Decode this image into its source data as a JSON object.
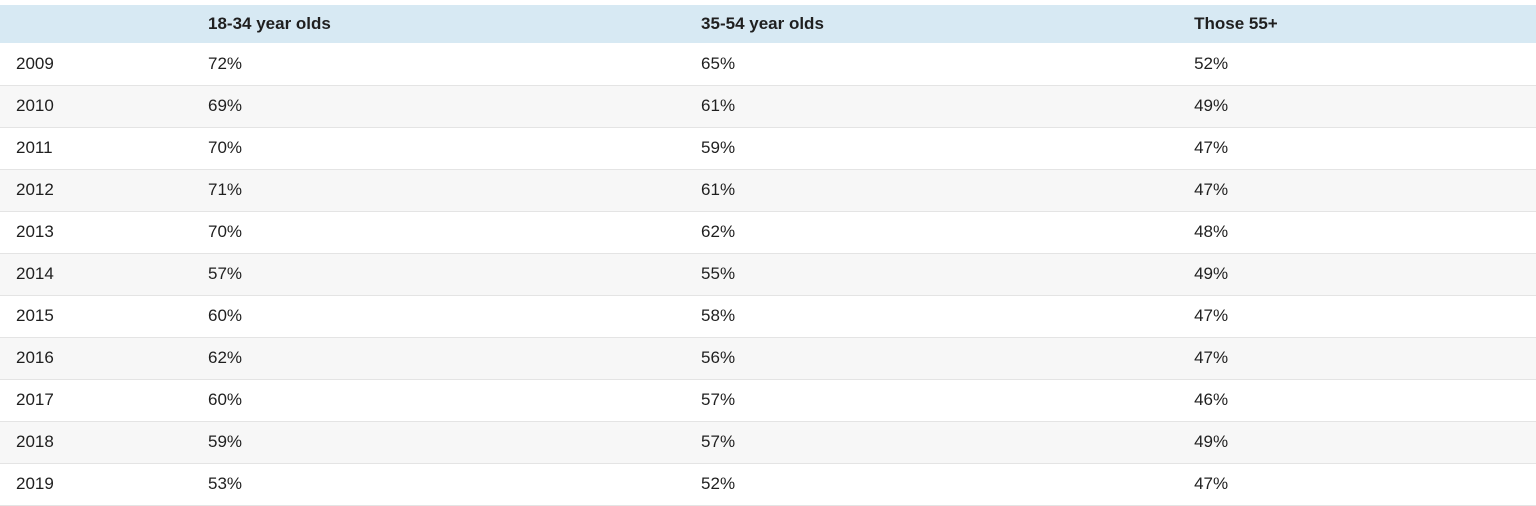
{
  "colors": {
    "header_bg": "#d7e9f3",
    "row_alt_bg": "#f7f7f7",
    "border": "#e4e4e4",
    "text": "#1f1f1f"
  },
  "chart_data": {
    "type": "table",
    "title": "",
    "columns": [
      "",
      "18-34 year olds",
      "35-54 year olds",
      "Those 55+"
    ],
    "rows": [
      {
        "year": "2009",
        "values": [
          "72%",
          "65%",
          "52%"
        ]
      },
      {
        "year": "2010",
        "values": [
          "69%",
          "61%",
          "49%"
        ]
      },
      {
        "year": "2011",
        "values": [
          "70%",
          "59%",
          "47%"
        ]
      },
      {
        "year": "2012",
        "values": [
          "71%",
          "61%",
          "47%"
        ]
      },
      {
        "year": "2013",
        "values": [
          "70%",
          "62%",
          "48%"
        ]
      },
      {
        "year": "2014",
        "values": [
          "57%",
          "55%",
          "49%"
        ]
      },
      {
        "year": "2015",
        "values": [
          "60%",
          "58%",
          "47%"
        ]
      },
      {
        "year": "2016",
        "values": [
          "62%",
          "56%",
          "47%"
        ]
      },
      {
        "year": "2017",
        "values": [
          "60%",
          "57%",
          "46%"
        ]
      },
      {
        "year": "2018",
        "values": [
          "59%",
          "57%",
          "49%"
        ]
      },
      {
        "year": "2019",
        "values": [
          "53%",
          "52%",
          "47%"
        ]
      }
    ],
    "x": [
      2009,
      2010,
      2011,
      2012,
      2013,
      2014,
      2015,
      2016,
      2017,
      2018,
      2019
    ],
    "series": [
      {
        "name": "18-34 year olds",
        "values": [
          72,
          69,
          70,
          71,
          70,
          57,
          60,
          62,
          60,
          59,
          53
        ]
      },
      {
        "name": "35-54 year olds",
        "values": [
          65,
          61,
          59,
          61,
          62,
          55,
          58,
          56,
          57,
          57,
          52
        ]
      },
      {
        "name": "Those 55+",
        "values": [
          52,
          49,
          47,
          47,
          48,
          49,
          47,
          47,
          46,
          49,
          47
        ]
      }
    ],
    "value_unit": "%"
  }
}
